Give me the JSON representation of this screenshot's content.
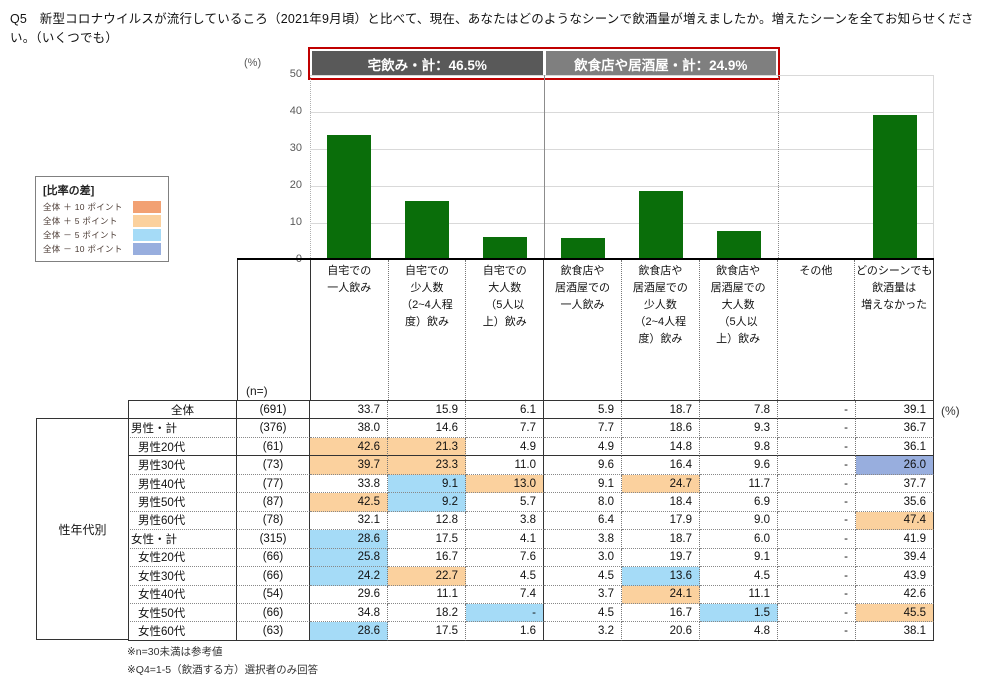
{
  "title": "Q5　新型コロナウイルスが流行しているころ（2021年9月頃）と比べて、現在、あなたはどのようなシーンで飲酒量が増えましたか。増えたシーンを全てお知らせください。（いくつでも）",
  "callouts": {
    "home_total": "宅飲み・計：46.5%",
    "restaurant_total": "飲食店や居酒屋・計：24.9%"
  },
  "legend": {
    "title": "[比率の差]",
    "items": [
      {
        "label": "全体 ＋ 10 ポイント",
        "key": "plus10"
      },
      {
        "label": "全体 ＋  5 ポイント",
        "key": "plus5"
      },
      {
        "label": "全体 －  5 ポイント",
        "key": "minus5"
      },
      {
        "label": "全体 － 10 ポイント",
        "key": "minus10"
      }
    ]
  },
  "chart_data": {
    "type": "bar",
    "title": "",
    "categories": [
      "自宅での一人飲み",
      "自宅での少人数（2~4人程度）飲み",
      "自宅での大人数（5人以上）飲み",
      "飲食店や居酒屋での一人飲み",
      "飲食店や居酒屋での少人数（2~4人程度）飲み",
      "飲食店や居酒屋での大人数（5人以上）飲み",
      "その他",
      "どのシーンでも飲酒量は増えなかった"
    ],
    "values": [
      33.7,
      15.9,
      6.1,
      5.9,
      18.7,
      7.8,
      null,
      39.1
    ],
    "xlabel": "",
    "ylabel": "(%)",
    "ylim": [
      0,
      50
    ],
    "yticks": [
      0,
      10,
      20,
      30,
      40,
      50
    ],
    "grid": true,
    "legend_position": "left"
  },
  "table": {
    "n_header": "(n=)",
    "unit_label": "(%)",
    "group_label": "性年代別",
    "columns": [
      "自宅での\n一人飲み",
      "自宅での\n少人数\n（2~4人程\n度）飲み",
      "自宅での\n大人数\n（5人以\n上）飲み",
      "飲食店や\n居酒屋での\n一人飲み",
      "飲食店や\n居酒屋での\n少人数\n（2~4人程\n度）飲み",
      "飲食店や\n居酒屋での\n大人数\n（5人以\n上）飲み",
      "その他",
      "どのシーンでも\n飲酒量は\n増えなかった"
    ],
    "rows": [
      {
        "label": "全体",
        "type": "total",
        "n": "(691)",
        "values": [
          "33.7",
          "15.9",
          "6.1",
          "5.9",
          "18.7",
          "7.8",
          "-",
          "39.1"
        ],
        "highlights": {}
      },
      {
        "label": "男性・計",
        "type": "sub",
        "n": "(376)",
        "values": [
          "38.0",
          "14.6",
          "7.7",
          "7.7",
          "18.6",
          "9.3",
          "-",
          "36.7"
        ],
        "highlights": {}
      },
      {
        "label": "男性20代",
        "type": "age",
        "n": "(61)",
        "values": [
          "42.6",
          "21.3",
          "4.9",
          "4.9",
          "14.8",
          "9.8",
          "-",
          "36.1"
        ],
        "highlights": {
          "0": "plus5",
          "1": "plus5"
        }
      },
      {
        "label": "男性30代",
        "type": "age",
        "n": "(73)",
        "values": [
          "39.7",
          "23.3",
          "11.0",
          "9.6",
          "16.4",
          "9.6",
          "-",
          "26.0"
        ],
        "highlights": {
          "0": "plus5",
          "1": "plus5",
          "7": "minus10"
        }
      },
      {
        "label": "男性40代",
        "type": "age",
        "n": "(77)",
        "values": [
          "33.8",
          "9.1",
          "13.0",
          "9.1",
          "24.7",
          "11.7",
          "-",
          "37.7"
        ],
        "highlights": {
          "1": "minus5",
          "2": "plus5",
          "4": "plus5"
        }
      },
      {
        "label": "男性50代",
        "type": "age",
        "n": "(87)",
        "values": [
          "42.5",
          "9.2",
          "5.7",
          "8.0",
          "18.4",
          "6.9",
          "-",
          "35.6"
        ],
        "highlights": {
          "0": "plus5",
          "1": "minus5"
        }
      },
      {
        "label": "男性60代",
        "type": "age",
        "n": "(78)",
        "values": [
          "32.1",
          "12.8",
          "3.8",
          "6.4",
          "17.9",
          "9.0",
          "-",
          "47.4"
        ],
        "highlights": {
          "7": "plus5"
        }
      },
      {
        "label": "女性・計",
        "type": "sub",
        "n": "(315)",
        "values": [
          "28.6",
          "17.5",
          "4.1",
          "3.8",
          "18.7",
          "6.0",
          "-",
          "41.9"
        ],
        "highlights": {
          "0": "minus5"
        }
      },
      {
        "label": "女性20代",
        "type": "age",
        "n": "(66)",
        "values": [
          "25.8",
          "16.7",
          "7.6",
          "3.0",
          "19.7",
          "9.1",
          "-",
          "39.4"
        ],
        "highlights": {
          "0": "minus5"
        }
      },
      {
        "label": "女性30代",
        "type": "age",
        "n": "(66)",
        "values": [
          "24.2",
          "22.7",
          "4.5",
          "4.5",
          "13.6",
          "4.5",
          "-",
          "43.9"
        ],
        "highlights": {
          "0": "minus5",
          "1": "plus5",
          "4": "minus5"
        }
      },
      {
        "label": "女性40代",
        "type": "age",
        "n": "(54)",
        "values": [
          "29.6",
          "11.1",
          "7.4",
          "3.7",
          "24.1",
          "11.1",
          "-",
          "42.6"
        ],
        "highlights": {
          "4": "plus5"
        }
      },
      {
        "label": "女性50代",
        "type": "age",
        "n": "(66)",
        "values": [
          "34.8",
          "18.2",
          "-",
          "4.5",
          "16.7",
          "1.5",
          "-",
          "45.5"
        ],
        "highlights": {
          "2": "minus5",
          "5": "minus5",
          "7": "plus5"
        }
      },
      {
        "label": "女性60代",
        "type": "age",
        "n": "(63)",
        "values": [
          "28.6",
          "17.5",
          "1.6",
          "3.2",
          "20.6",
          "4.8",
          "-",
          "38.1"
        ],
        "highlights": {
          "0": "minus5"
        }
      }
    ]
  },
  "footnotes": [
    "※n=30未満は参考値",
    "※Q4=1-5（飲酒する方）選択者のみ回答"
  ],
  "colors": {
    "plus10": "#F2A173",
    "plus5": "#FBD19E",
    "minus5": "#A5DBF7",
    "minus10": "#98AEDE",
    "bar": "#0A6E0A",
    "callout_dark": "#595959",
    "callout_light": "#7F7F7F",
    "callout_border": "#C00000"
  }
}
